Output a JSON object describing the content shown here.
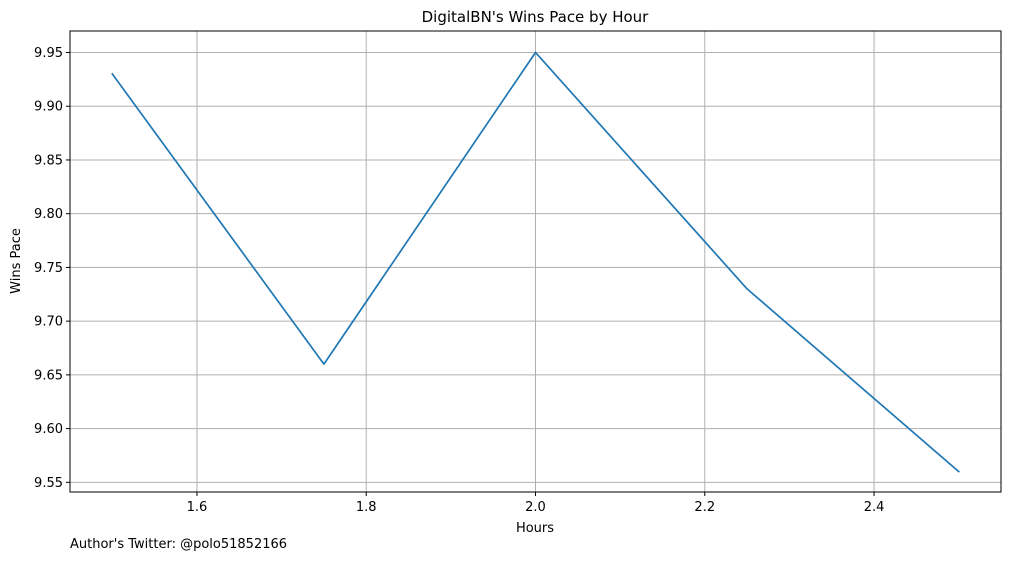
{
  "chart_data": {
    "type": "line",
    "title": "DigitalBN's Wins Pace by Hour",
    "xlabel": "Hours",
    "ylabel": "Wins Pace",
    "x": [
      1.5,
      1.75,
      2.0,
      2.25,
      2.5
    ],
    "series": [
      {
        "values": [
          9.93,
          9.66,
          9.95,
          9.73,
          9.56
        ],
        "color": "#1f77b4"
      }
    ],
    "xlim": [
      1.45,
      2.55
    ],
    "ylim": [
      9.541,
      9.97
    ],
    "xticks": [
      1.6,
      1.8,
      2.0,
      2.2,
      2.4
    ],
    "xtick_labels": [
      "1.6",
      "1.8",
      "2.0",
      "2.2",
      "2.4"
    ],
    "yticks": [
      9.55,
      9.6,
      9.65,
      9.7,
      9.75,
      9.8,
      9.85,
      9.9,
      9.95
    ],
    "ytick_labels": [
      "9.55",
      "9.60",
      "9.65",
      "9.70",
      "9.75",
      "9.80",
      "9.85",
      "9.90",
      "9.95"
    ],
    "grid": true,
    "legend": "none"
  },
  "footer": {
    "credit": "Author's Twitter: @polo51852166"
  }
}
